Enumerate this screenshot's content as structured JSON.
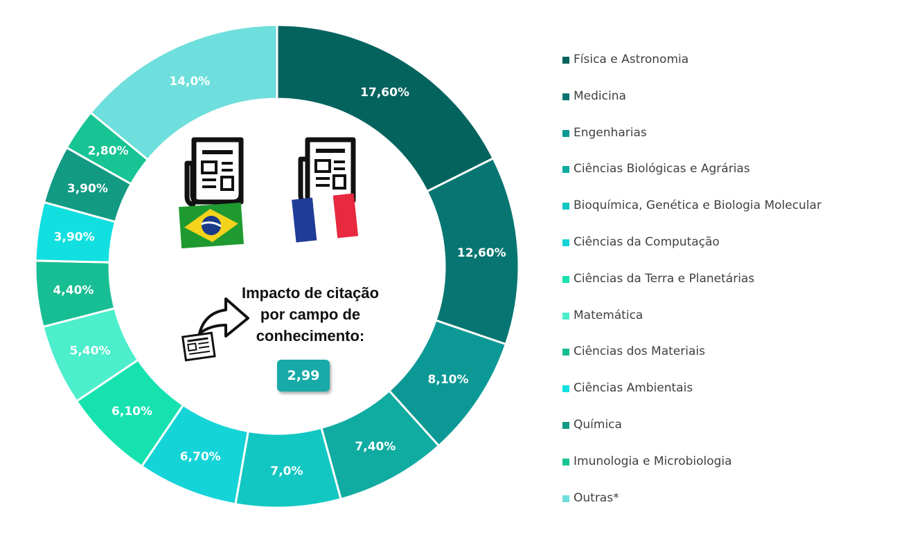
{
  "chart_data": {
    "type": "pie",
    "variant": "donut",
    "legend_position": "right",
    "center_text": [
      "Impacto de citação",
      "por campo de",
      "conhecimento:"
    ],
    "center_value": "2,99",
    "slices": [
      {
        "name": "Física e Astronomia",
        "value": 17.6,
        "label": "17,60%",
        "color": "#05635e"
      },
      {
        "name": "Medicina",
        "value": 12.6,
        "label": "12,60%",
        "color": "#077571"
      },
      {
        "name": "Engenharias",
        "value": 8.1,
        "label": "8,10%",
        "color": "#0c9995"
      },
      {
        "name": "Ciências Biológicas e Agrárias",
        "value": 7.4,
        "label": "7,40%",
        "color": "#10aba1"
      },
      {
        "name": "Bioquímica, Genética e Biologia Molecular",
        "value": 7.0,
        "label": "7,0%",
        "color": "#12c7c2"
      },
      {
        "name": "Ciências da Computação",
        "value": 6.7,
        "label": "6,70%",
        "color": "#14d4d8"
      },
      {
        "name": "Ciências da Terra e Planetárias",
        "value": 6.1,
        "label": "6,10%",
        "color": "#16e2b0"
      },
      {
        "name": "Matemática",
        "value": 5.4,
        "label": "5,40%",
        "color": "#4ceecc"
      },
      {
        "name": "Ciências dos Materiais",
        "value": 4.4,
        "label": "4,40%",
        "color": "#17be93"
      },
      {
        "name": "Ciências Ambientais",
        "value": 3.9,
        "label": "3,90%",
        "color": "#12dfe0"
      },
      {
        "name": "Química",
        "value": 3.9,
        "label": "3,90%",
        "color": "#129a83"
      },
      {
        "name": "Imunologia e Microbiologia",
        "value": 2.8,
        "label": "2,80%",
        "color": "#17c493"
      },
      {
        "name": "Outras*",
        "value": 14.0,
        "label": "14,0%",
        "color": "#6edfdc"
      }
    ]
  },
  "icons": [
    "newspaper-icon",
    "newspaper-icon",
    "brazil-flag-icon",
    "france-flag-icon",
    "curved-arrow-icon",
    "newspaper-icon"
  ]
}
